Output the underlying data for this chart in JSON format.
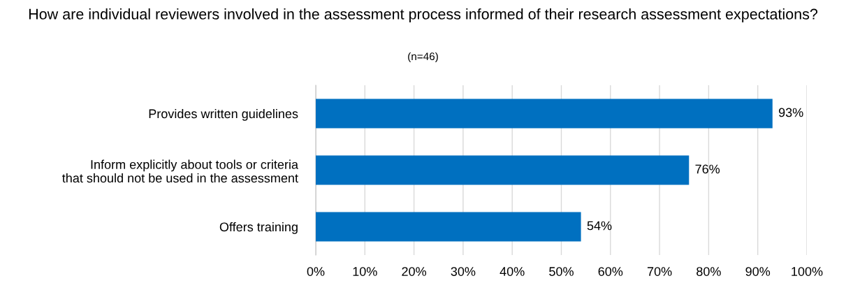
{
  "chart_data": {
    "type": "bar",
    "orientation": "horizontal",
    "title": "How are individual reviewers involved in the assessment process informed of their research assessment expectations?",
    "subtitle": "(n=46)",
    "categories": [
      "Provides written guidelines",
      "Inform explicitly about tools or criteria\nthat should not be used in the assessment",
      "Offers training"
    ],
    "values": [
      93,
      76,
      54
    ],
    "color": "#0070c0",
    "value_labels": [
      "93%",
      "76%",
      "54%"
    ],
    "xlim": [
      0,
      100
    ],
    "xticks": [
      {
        "value": 0,
        "label": "0%"
      },
      {
        "value": 10,
        "label": "10%"
      },
      {
        "value": 20,
        "label": "20%"
      },
      {
        "value": 30,
        "label": "30%"
      },
      {
        "value": 40,
        "label": "40%"
      },
      {
        "value": 50,
        "label": "50%"
      },
      {
        "value": 60,
        "label": "60%"
      },
      {
        "value": 70,
        "label": "70%"
      },
      {
        "value": 80,
        "label": "80%"
      },
      {
        "value": 90,
        "label": "90%"
      },
      {
        "value": 100,
        "label": "100%"
      }
    ],
    "grid": "x",
    "legend": false
  }
}
